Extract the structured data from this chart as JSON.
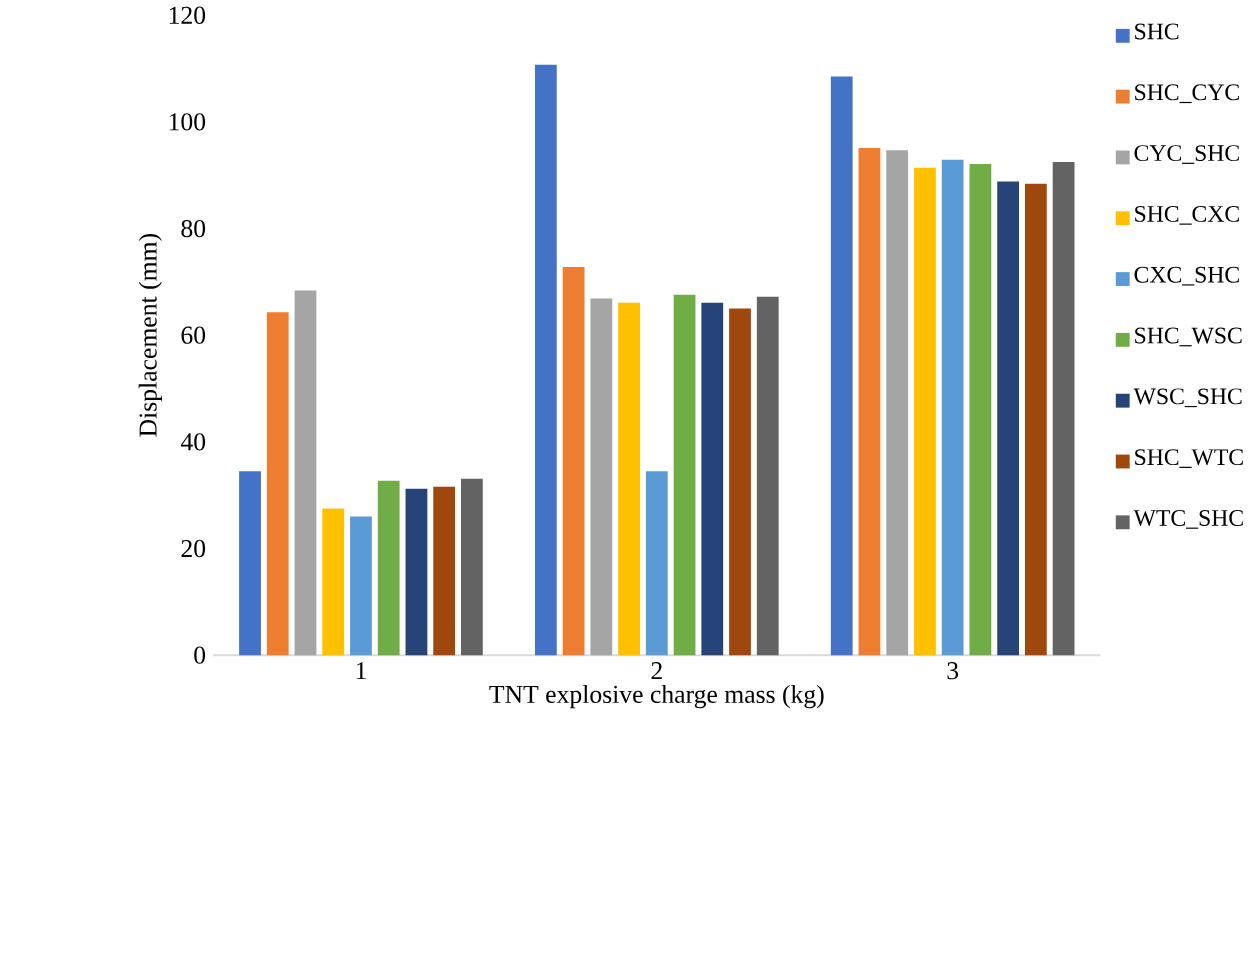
{
  "chart_data": {
    "type": "bar",
    "xlabel": "TNT explosive charge mass (kg)",
    "ylabel": "Displacement (mm)",
    "categories": [
      "1",
      "2",
      "3"
    ],
    "ylim": [
      0,
      120
    ],
    "yticks": [
      0,
      20,
      40,
      60,
      80,
      100,
      120
    ],
    "legend": "right",
    "grid": false,
    "series": [
      {
        "name": "SHC",
        "color": "#4472c4",
        "values": [
          34.5,
          110.7,
          108.5
        ]
      },
      {
        "name": "SHC_CYC",
        "color": "#ed7d31",
        "values": [
          64.3,
          72.8,
          95.1
        ]
      },
      {
        "name": "CYC_SHC",
        "color": "#a5a5a5",
        "values": [
          68.4,
          66.9,
          94.7
        ]
      },
      {
        "name": "SHC_CXC",
        "color": "#ffc000",
        "values": [
          27.5,
          66.1,
          91.4
        ]
      },
      {
        "name": "CXC_SHC",
        "color": "#5b9bd5",
        "values": [
          26.0,
          34.5,
          92.9
        ]
      },
      {
        "name": "SHC_WSC",
        "color": "#70ad47",
        "values": [
          32.7,
          67.6,
          92.1
        ]
      },
      {
        "name": "WSC_SHC",
        "color": "#264478",
        "values": [
          31.2,
          66.1,
          88.8
        ]
      },
      {
        "name": "SHC_WTC",
        "color": "#9e480e",
        "values": [
          31.6,
          65.0,
          88.4
        ]
      },
      {
        "name": "WTC_SHC",
        "color": "#636363",
        "values": [
          33.1,
          67.2,
          92.5
        ]
      }
    ]
  }
}
